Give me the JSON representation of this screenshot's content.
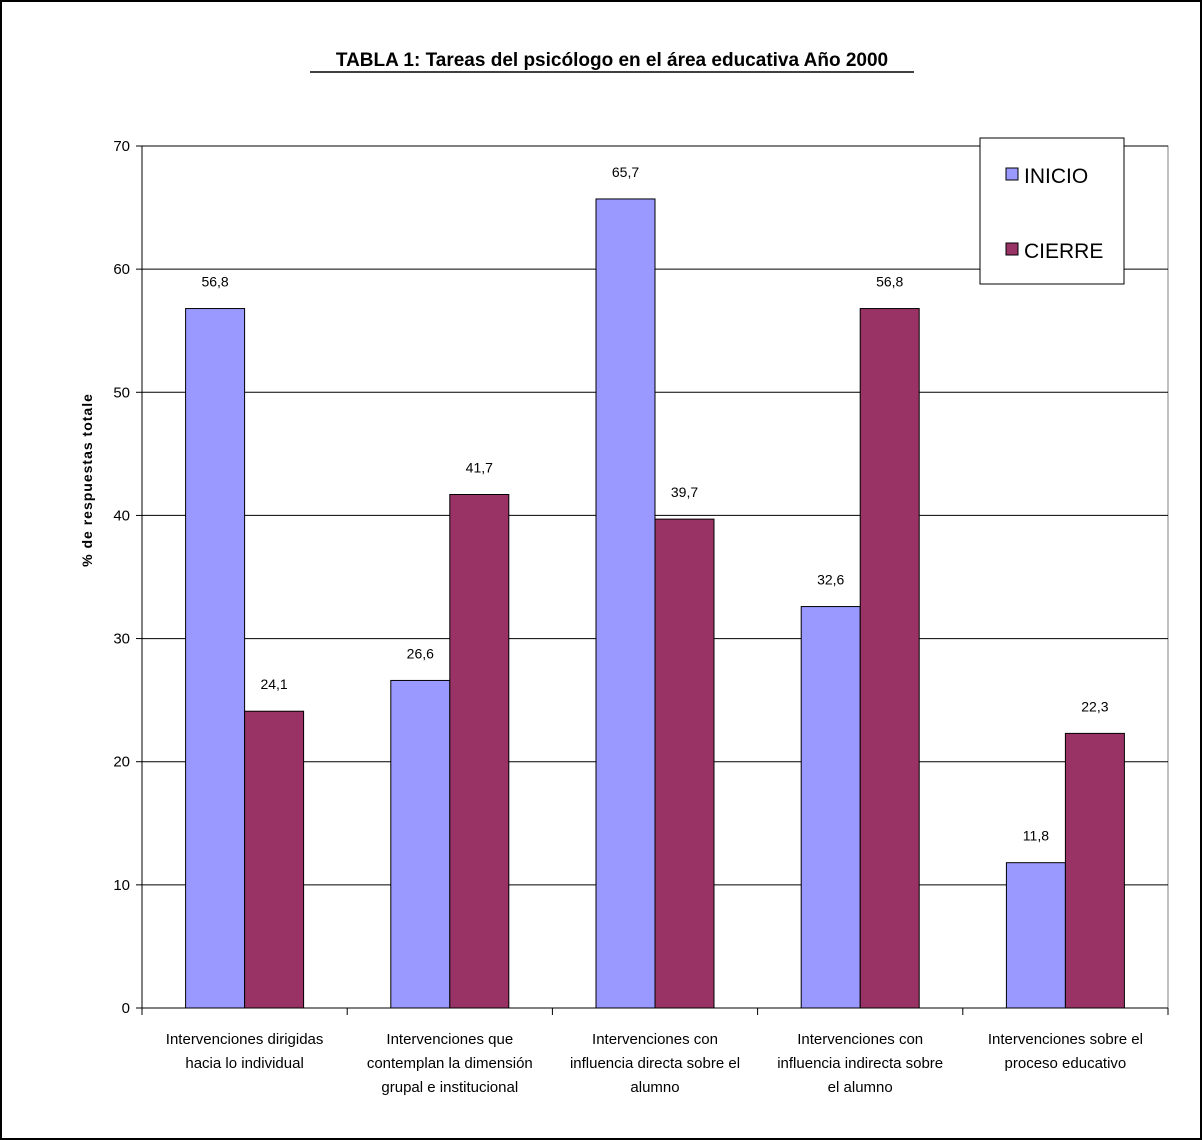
{
  "chart_data": {
    "type": "bar",
    "title": "TABLA 1: Tareas del psicólogo en el área educativa Año 2000",
    "ylabel": "% de respuestas totale",
    "xlabel": "",
    "ylim": [
      0,
      70
    ],
    "yticks": [
      "0",
      "10",
      "20",
      "30",
      "40",
      "50",
      "60",
      "70"
    ],
    "grid": true,
    "legend_position": "top-right",
    "categories": [
      [
        "Intervenciones dirigidas",
        "hacia lo individual"
      ],
      [
        "Intervenciones que",
        "contemplan la dimensión",
        "grupal e institucional"
      ],
      [
        "Intervenciones con",
        "influencia directa sobre el",
        "alumno"
      ],
      [
        "Intervenciones con",
        "influencia indirecta sobre",
        "el alumno"
      ],
      [
        "Intervenciones sobre el",
        "proceso educativo"
      ]
    ],
    "series": [
      {
        "name": "INICIO",
        "color": "#9999ff",
        "values": [
          56.8,
          26.6,
          65.7,
          32.6,
          11.8
        ],
        "labels": [
          "56,8",
          "26,6",
          "65,7",
          "32,6",
          "11,8"
        ]
      },
      {
        "name": "CIERRE",
        "color": "#993366",
        "values": [
          24.1,
          41.7,
          39.7,
          56.8,
          22.3
        ],
        "labels": [
          "24,1",
          "41,7",
          "39,7",
          "56,8",
          "22,3"
        ]
      }
    ]
  }
}
